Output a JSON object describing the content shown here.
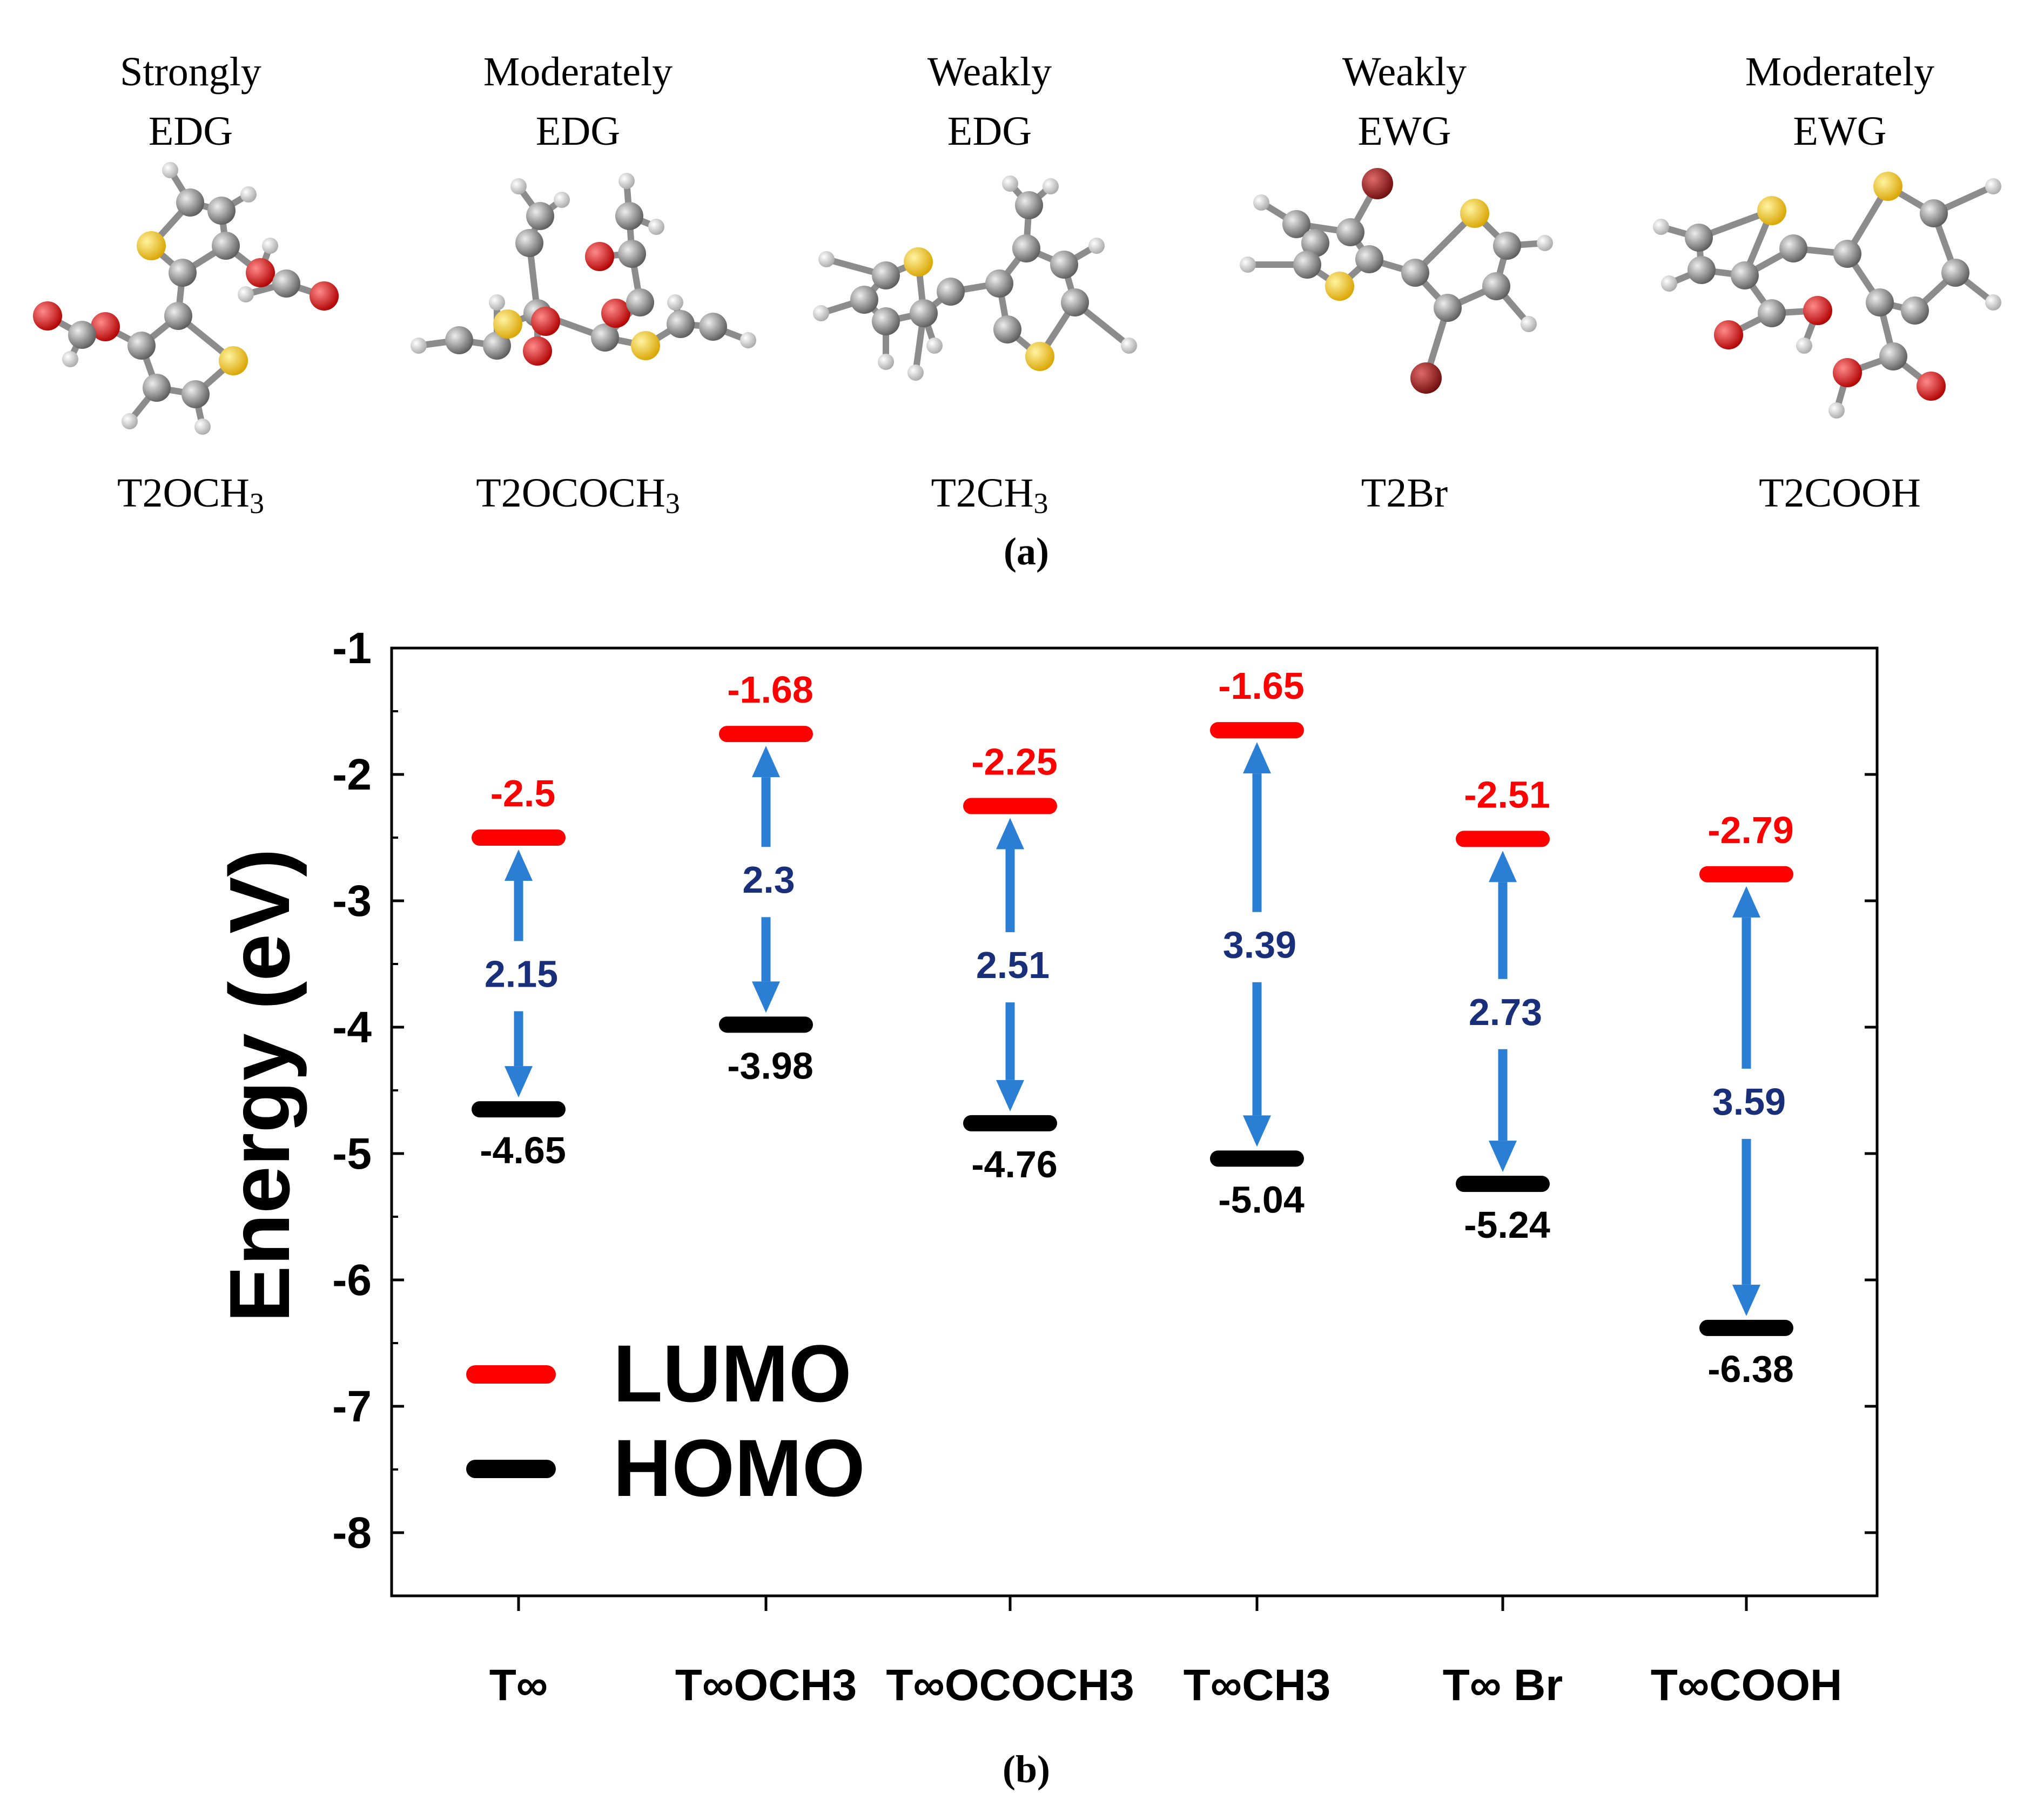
{
  "panel_a": {
    "label": "(a)",
    "molecules": [
      {
        "cls1": "Strongly",
        "cls2": "EDG",
        "name_main": "T2OCH",
        "name_sub": "3"
      },
      {
        "cls1": "Moderately",
        "cls2": "EDG",
        "name_main": "T2OCOCH",
        "name_sub": "3"
      },
      {
        "cls1": "Weakly",
        "cls2": "EDG",
        "name_main": "T2CH",
        "name_sub": "3"
      },
      {
        "cls1": "Weakly",
        "cls2": "EWG",
        "name_main": "T2Br",
        "name_sub": ""
      },
      {
        "cls1": "Moderately",
        "cls2": "EWG",
        "name_main": "T2COOH",
        "name_sub": ""
      }
    ]
  },
  "panel_b": {
    "label": "(b)"
  },
  "colors": {
    "lumo": "#ff0000",
    "homo": "#000000",
    "arrow": "#2a7fd4",
    "gap_text": "#1a2f7a",
    "carbon": "#7a7a7a",
    "sulfur": "#f2c200",
    "oxygen": "#e00000",
    "bromine": "#9b1414",
    "hydrogen": "#d8d8d8"
  },
  "chart_data": {
    "type": "energy-level diagram",
    "ylabel": "Energy (eV)",
    "ylim": [
      -8.5,
      -1
    ],
    "yticks": [
      "-1",
      "-2",
      "-3",
      "-4",
      "-5",
      "-6",
      "-7",
      "-8"
    ],
    "categories": [
      "T∞",
      "T∞OCH3",
      "T∞OCOCH3",
      "T∞CH3",
      "T∞ Br",
      "T∞COOH"
    ],
    "series": [
      {
        "name": "LUMO",
        "values": [
          -2.5,
          -1.68,
          -2.25,
          -1.65,
          -2.51,
          -2.79
        ],
        "labels": [
          "-2.5",
          "-1.68",
          "-2.25",
          "-1.65",
          "-2.51",
          "-2.79"
        ]
      },
      {
        "name": "HOMO",
        "values": [
          -4.65,
          -3.98,
          -4.76,
          -5.04,
          -5.24,
          -6.38
        ],
        "labels": [
          "-4.65",
          "-3.98",
          "-4.76",
          "-5.04",
          "-5.24",
          "-6.38"
        ]
      }
    ],
    "gaps": [
      "2.15",
      "2.3",
      "2.51",
      "3.39",
      "2.73",
      "3.59"
    ],
    "legend": {
      "placement": "bottom-left",
      "entries": [
        "LUMO",
        "HOMO"
      ]
    }
  }
}
